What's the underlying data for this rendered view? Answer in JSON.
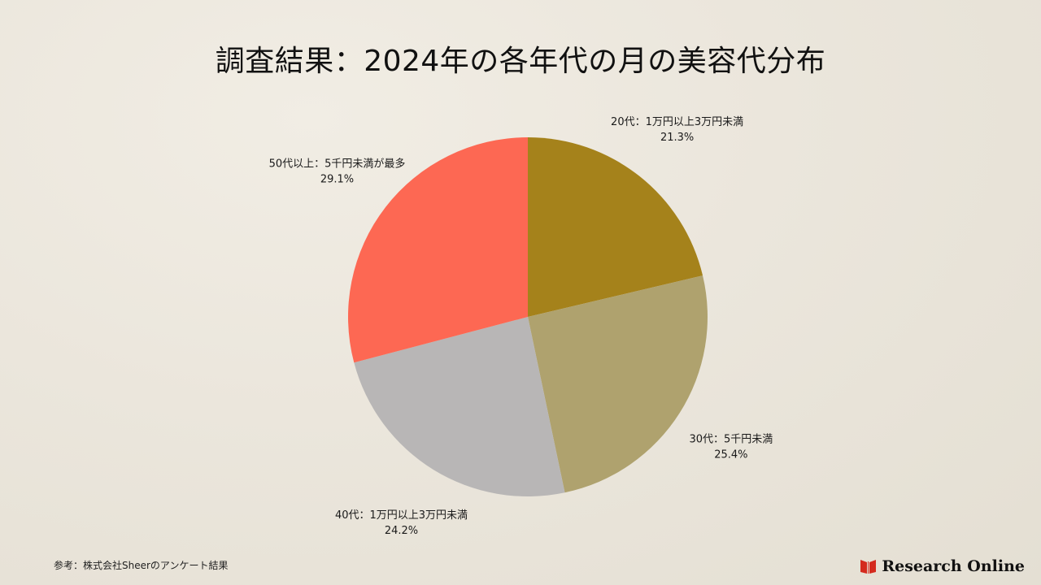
{
  "title": "調査結果：2024年の各年代の月の美容代分布",
  "chart_data": {
    "type": "pie",
    "title": "調査結果：2024年の各年代の月の美容代分布",
    "legend": "none",
    "slices": [
      {
        "label": "20代：1万円以上3万円未満",
        "value": 21.3,
        "display": "21.3%",
        "color": "#a5821b"
      },
      {
        "label": "30代：5千円未満",
        "value": 25.4,
        "display": "25.4%",
        "color": "#afa26e"
      },
      {
        "label": "40代：1万円以上3万円未満",
        "value": 24.2,
        "display": "24.2%",
        "color": "#b8b6b6"
      },
      {
        "label": "50代以上：5千円未満が最多",
        "value": 29.1,
        "display": "29.1%",
        "color": "#fd6853"
      }
    ]
  },
  "source": "参考：株式会社Sheerのアンケート結果",
  "brand": {
    "name": "Research Online",
    "logo_icon": "research-online-logo-icon",
    "logo_color": "#d42a1e"
  }
}
